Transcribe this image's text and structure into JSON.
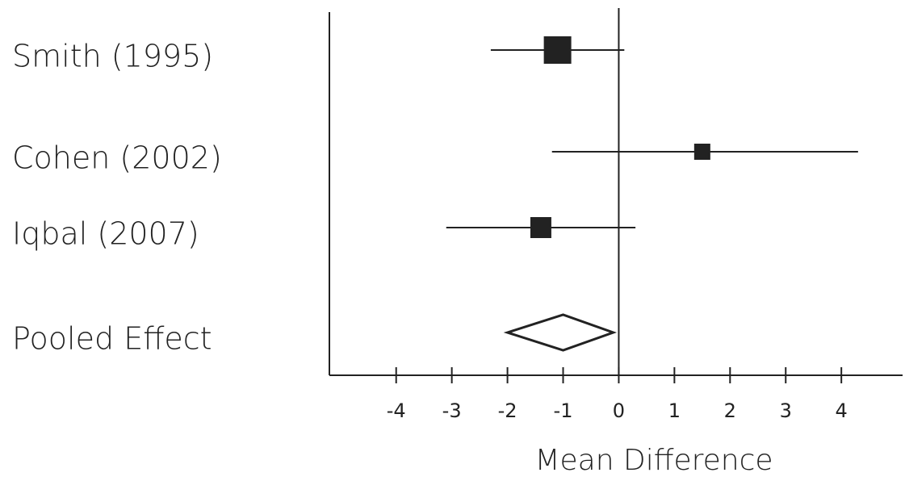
{
  "chart_data": {
    "type": "forest",
    "categories": [
      "Smith (1995)",
      "Cohen (2002)",
      "Iqbal (2007)"
    ],
    "values": [
      -1.1,
      1.5,
      -1.4
    ],
    "lower": [
      -2.3,
      -1.2,
      -3.1
    ],
    "upper": [
      0.1,
      4.3,
      0.3
    ],
    "pooled": {
      "label": "Pooled Effect",
      "value": -1.0,
      "lower": -2.0,
      "upper": -0.1
    },
    "reference_line": 0,
    "x_label": "Mean Difference",
    "xlim": [
      -5.2,
      5.1
    ],
    "xticks": [
      -4,
      -3,
      -2,
      -1,
      0,
      1,
      2,
      3,
      4
    ],
    "color": "#222222"
  }
}
